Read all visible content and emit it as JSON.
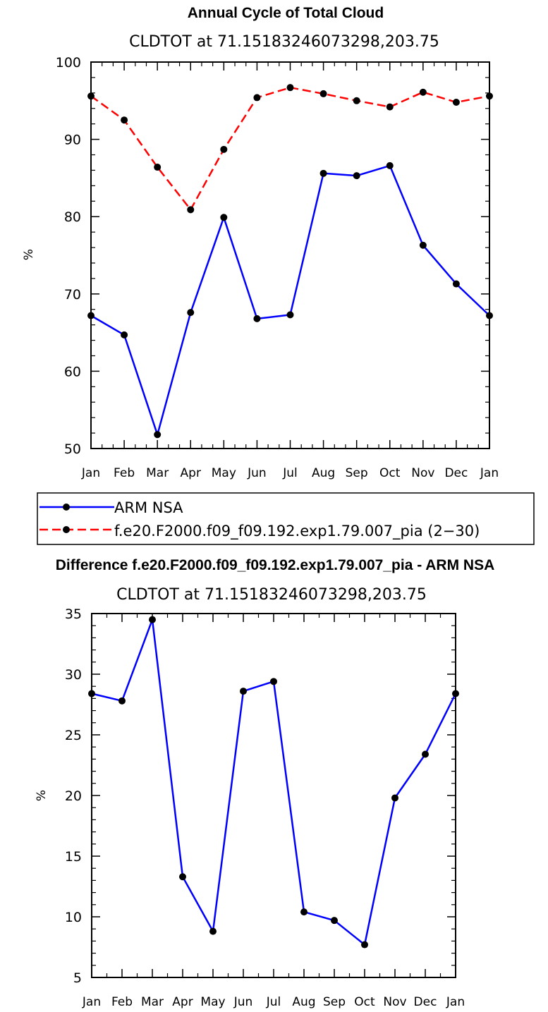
{
  "chart_data": [
    {
      "type": "line",
      "title": "Annual Cycle of Total Cloud",
      "subtitle": "CLDTOT at 71.15183246073298,203.75",
      "xlabel": "",
      "ylabel": "%",
      "ylim": [
        50,
        100
      ],
      "yticks": [
        "50",
        "60",
        "70",
        "80",
        "90",
        "100"
      ],
      "categories": [
        "Jan",
        "Feb",
        "Mar",
        "Apr",
        "May",
        "Jun",
        "Jul",
        "Aug",
        "Sep",
        "Oct",
        "Nov",
        "Dec",
        "Jan"
      ],
      "series": [
        {
          "name": "ARM NSA",
          "color": "#0000ff",
          "dash": "solid",
          "values": [
            67.2,
            64.7,
            51.8,
            67.6,
            79.9,
            66.8,
            67.3,
            85.6,
            85.3,
            86.6,
            76.3,
            71.3,
            67.2
          ]
        },
        {
          "name": "f.e20.F2000.f09_f09.192.exp1.79.007_pia (2−30)",
          "color": "#ff0000",
          "dash": "dashed",
          "values": [
            95.6,
            92.5,
            86.4,
            80.9,
            88.7,
            95.4,
            96.7,
            95.9,
            95.0,
            94.2,
            96.1,
            94.8,
            95.6
          ]
        }
      ],
      "legend": {
        "entries": [
          "ARM NSA",
          "f.e20.F2000.f09_f09.192.exp1.79.007_pia (2−30)"
        ],
        "placement": "below-plot"
      }
    },
    {
      "type": "line",
      "title": "Difference f.e20.F2000.f09_f09.192.exp1.79.007_pia - ARM NSA",
      "subtitle": "CLDTOT at 71.15183246073298,203.75",
      "xlabel": "",
      "ylabel": "%",
      "ylim": [
        5,
        35
      ],
      "yticks": [
        "5",
        "10",
        "15",
        "20",
        "25",
        "30",
        "35"
      ],
      "categories": [
        "Jan",
        "Feb",
        "Mar",
        "Apr",
        "May",
        "Jun",
        "Jul",
        "Aug",
        "Sep",
        "Oct",
        "Nov",
        "Dec",
        "Jan"
      ],
      "series": [
        {
          "name": "Difference",
          "color": "#0000ff",
          "dash": "solid",
          "values": [
            28.4,
            27.8,
            34.5,
            13.3,
            8.8,
            28.6,
            29.4,
            10.4,
            9.7,
            7.7,
            19.8,
            23.4,
            28.4
          ]
        }
      ]
    }
  ]
}
